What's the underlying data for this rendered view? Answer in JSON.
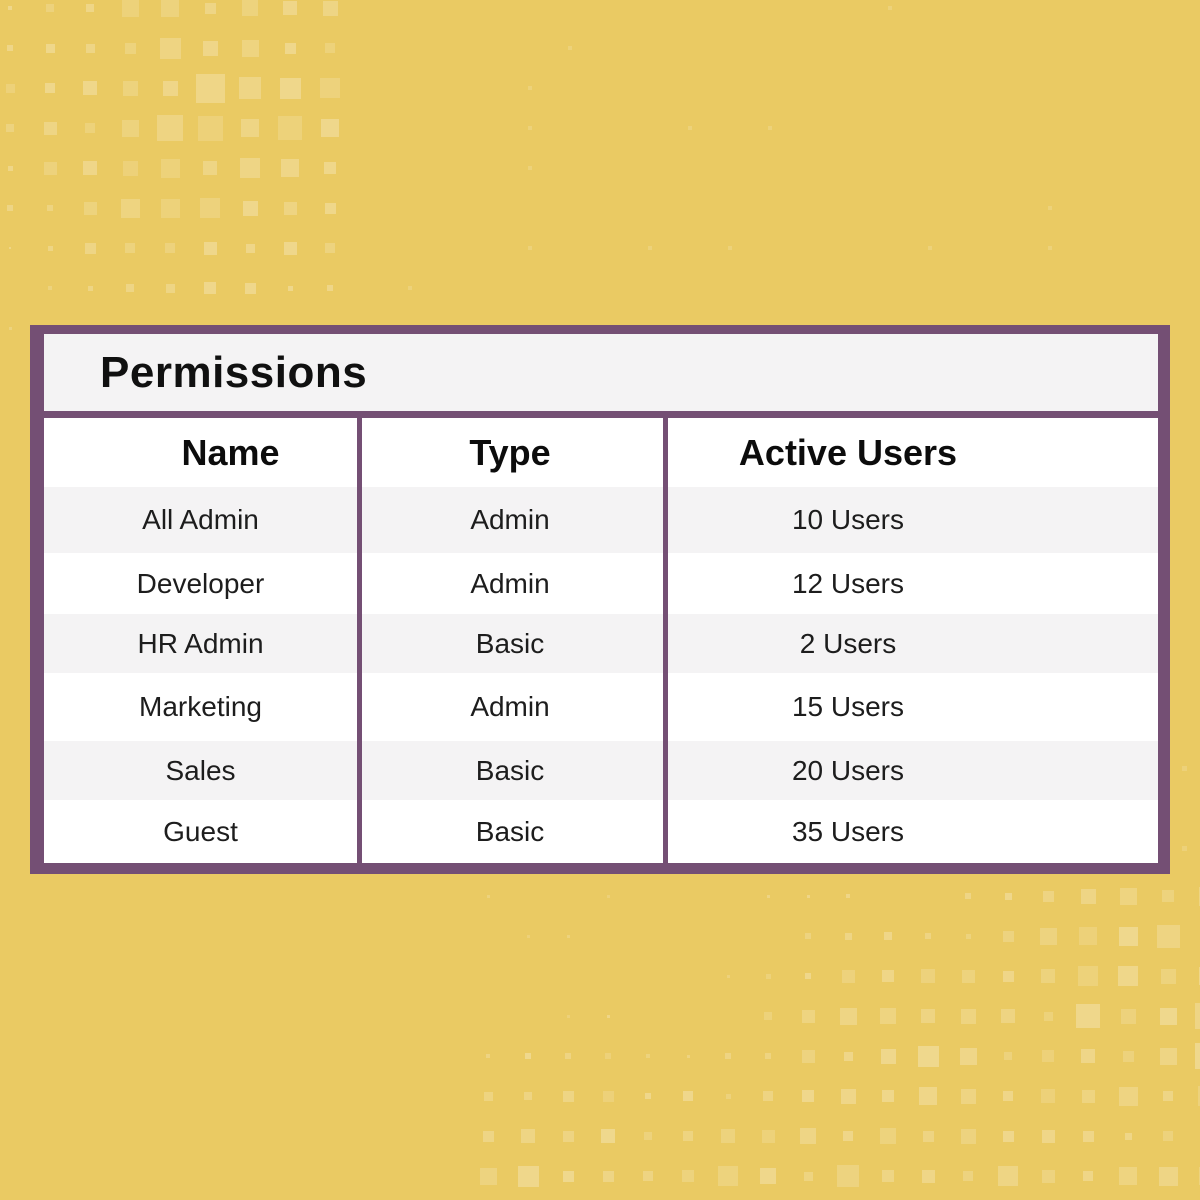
{
  "card": {
    "title": "Permissions"
  },
  "table": {
    "columns": [
      "Name",
      "Type",
      "Active Users"
    ],
    "rows": [
      {
        "name": "All Admin",
        "type": "Admin",
        "active_users": "10 Users"
      },
      {
        "name": "Developer",
        "type": "Admin",
        "active_users": "12 Users"
      },
      {
        "name": "HR Admin",
        "type": "Basic",
        "active_users": "2 Users"
      },
      {
        "name": "Marketing",
        "type": "Admin",
        "active_users": "15 Users"
      },
      {
        "name": "Sales",
        "type": "Basic",
        "active_users": "20 Users"
      },
      {
        "name": "Guest",
        "type": "Basic",
        "active_users": "35 Users"
      }
    ]
  },
  "colors": {
    "background": "#EACA63",
    "accent_border": "#744F74",
    "band_gray": "#F4F3F4",
    "row_white": "#FFFFFF",
    "text": "#1D1D1D"
  }
}
